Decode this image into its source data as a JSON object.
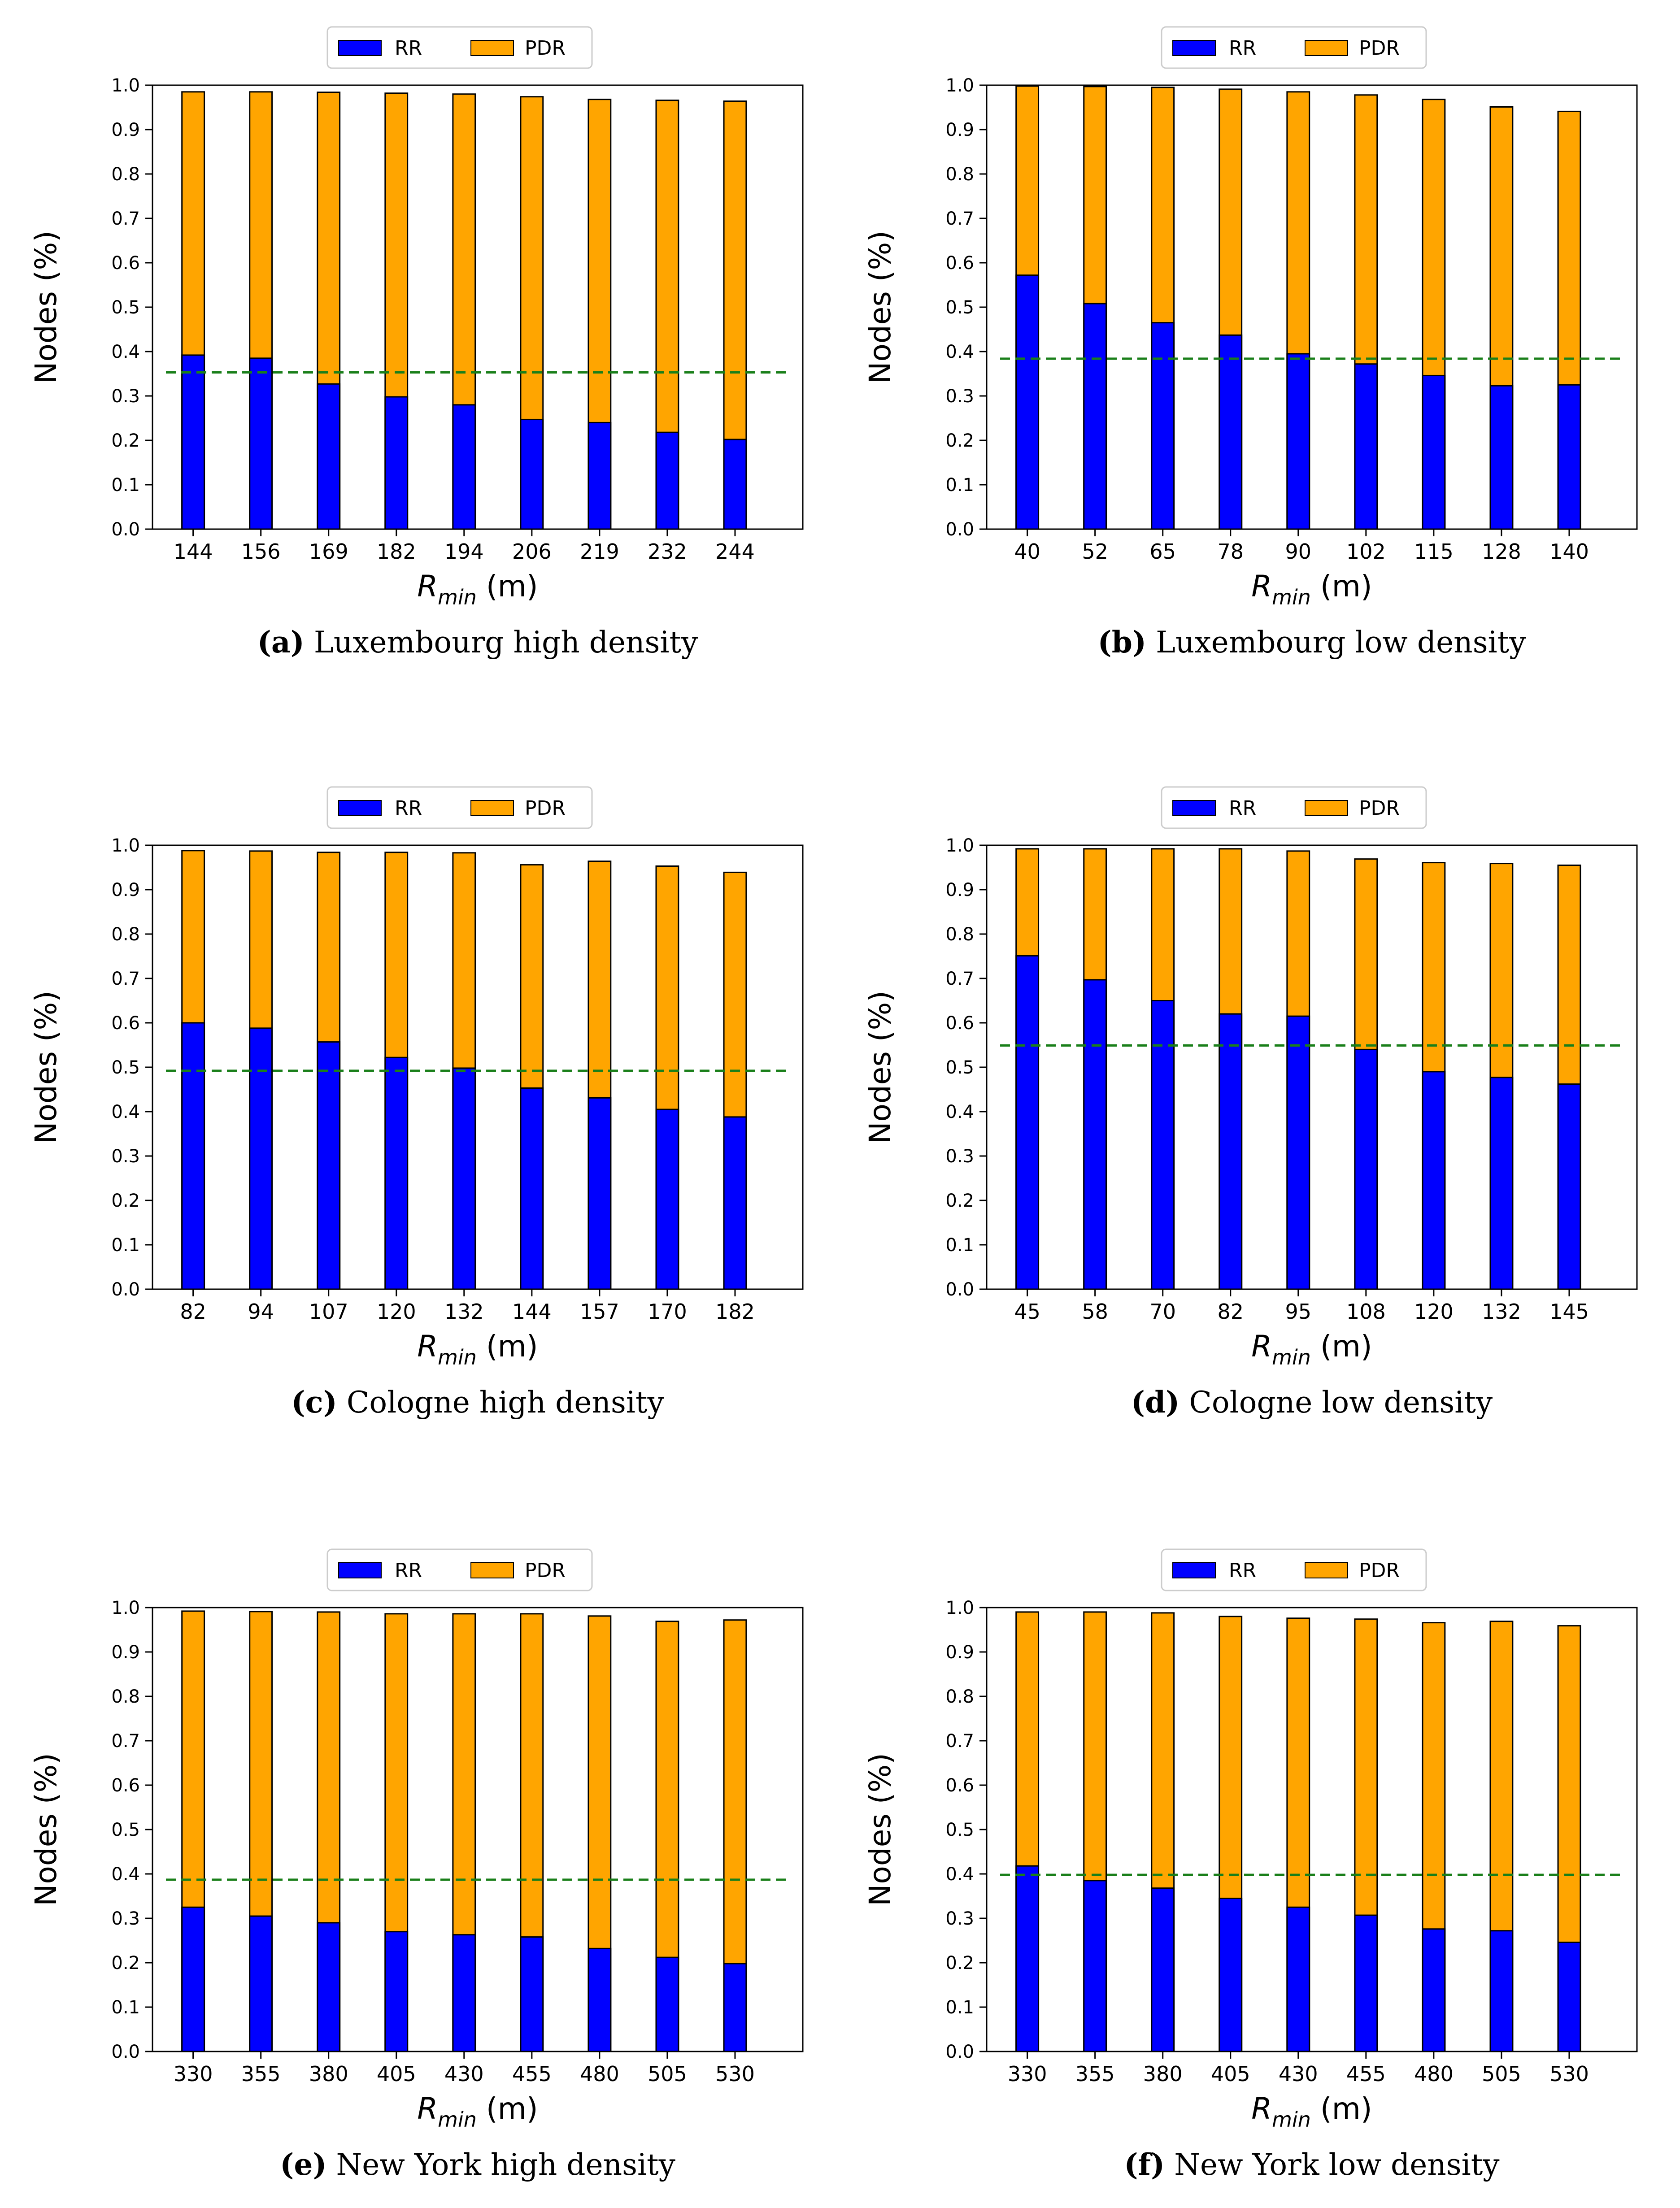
{
  "legend": {
    "rr_label": "RR",
    "pdr_label": "PDR"
  },
  "colors": {
    "rr": "#0000ff",
    "pdr": "#ffa500",
    "threshold": "#1a7f1a",
    "axis": "#000000"
  },
  "axis_text": {
    "ylabel": "Nodes (%)",
    "xlabel_symbol": "R",
    "xlabel_subscript": "min",
    "xlabel_unit": "(m)"
  },
  "chart_data": [
    {
      "type": "bar",
      "panel_letter": "(a)",
      "caption": "Luxembourg high density",
      "categories": [
        "144",
        "156",
        "169",
        "182",
        "194",
        "206",
        "219",
        "232",
        "244"
      ],
      "series": [
        {
          "name": "RR",
          "values": [
            0.392,
            0.385,
            0.327,
            0.298,
            0.28,
            0.247,
            0.24,
            0.218,
            0.202
          ]
        },
        {
          "name": "PDR",
          "values": [
            0.985,
            0.985,
            0.984,
            0.982,
            0.98,
            0.974,
            0.968,
            0.966,
            0.964
          ]
        }
      ],
      "threshold": 0.353,
      "ylim": [
        0,
        1.0
      ],
      "yticks": [
        "0.0",
        "0.1",
        "0.2",
        "0.3",
        "0.4",
        "0.5",
        "0.6",
        "0.7",
        "0.8",
        "0.9",
        "1.0"
      ]
    },
    {
      "type": "bar",
      "panel_letter": "(b)",
      "caption": "Luxembourg low density",
      "categories": [
        "40",
        "52",
        "65",
        "78",
        "90",
        "102",
        "115",
        "128",
        "140"
      ],
      "series": [
        {
          "name": "RR",
          "values": [
            0.572,
            0.508,
            0.465,
            0.437,
            0.395,
            0.372,
            0.346,
            0.323,
            0.325
          ]
        },
        {
          "name": "PDR",
          "values": [
            0.998,
            0.997,
            0.995,
            0.991,
            0.985,
            0.978,
            0.968,
            0.951,
            0.941
          ]
        }
      ],
      "threshold": 0.384,
      "ylim": [
        0,
        1.0
      ],
      "yticks": [
        "0.0",
        "0.1",
        "0.2",
        "0.3",
        "0.4",
        "0.5",
        "0.6",
        "0.7",
        "0.8",
        "0.9",
        "1.0"
      ]
    },
    {
      "type": "bar",
      "panel_letter": "(c)",
      "caption": "Cologne high density",
      "categories": [
        "82",
        "94",
        "107",
        "120",
        "132",
        "144",
        "157",
        "170",
        "182"
      ],
      "series": [
        {
          "name": "RR",
          "values": [
            0.6,
            0.588,
            0.557,
            0.522,
            0.498,
            0.453,
            0.431,
            0.405,
            0.388
          ]
        },
        {
          "name": "PDR",
          "values": [
            0.988,
            0.987,
            0.984,
            0.984,
            0.983,
            0.956,
            0.964,
            0.953,
            0.939
          ]
        }
      ],
      "threshold": 0.492,
      "ylim": [
        0,
        1.0
      ],
      "yticks": [
        "0.0",
        "0.1",
        "0.2",
        "0.3",
        "0.4",
        "0.5",
        "0.6",
        "0.7",
        "0.8",
        "0.9",
        "1.0"
      ]
    },
    {
      "type": "bar",
      "panel_letter": "(d)",
      "caption": "Cologne low density",
      "categories": [
        "45",
        "58",
        "70",
        "82",
        "95",
        "108",
        "120",
        "132",
        "145"
      ],
      "series": [
        {
          "name": "RR",
          "values": [
            0.751,
            0.697,
            0.65,
            0.62,
            0.615,
            0.54,
            0.49,
            0.477,
            0.462
          ]
        },
        {
          "name": "PDR",
          "values": [
            0.992,
            0.992,
            0.992,
            0.992,
            0.987,
            0.969,
            0.961,
            0.959,
            0.955
          ]
        }
      ],
      "threshold": 0.549,
      "ylim": [
        0,
        1.0
      ],
      "yticks": [
        "0.0",
        "0.1",
        "0.2",
        "0.3",
        "0.4",
        "0.5",
        "0.6",
        "0.7",
        "0.8",
        "0.9",
        "1.0"
      ]
    },
    {
      "type": "bar",
      "panel_letter": "(e)",
      "caption": "New York high density",
      "categories": [
        "330",
        "355",
        "380",
        "405",
        "430",
        "455",
        "480",
        "505",
        "530"
      ],
      "series": [
        {
          "name": "RR",
          "values": [
            0.325,
            0.305,
            0.29,
            0.27,
            0.263,
            0.258,
            0.232,
            0.212,
            0.198
          ]
        },
        {
          "name": "PDR",
          "values": [
            0.992,
            0.991,
            0.99,
            0.986,
            0.986,
            0.986,
            0.981,
            0.969,
            0.972
          ]
        }
      ],
      "threshold": 0.387,
      "ylim": [
        0,
        1.0
      ],
      "yticks": [
        "0.0",
        "0.1",
        "0.2",
        "0.3",
        "0.4",
        "0.5",
        "0.6",
        "0.7",
        "0.8",
        "0.9",
        "1.0"
      ]
    },
    {
      "type": "bar",
      "panel_letter": "(f)",
      "caption": "New York low density",
      "categories": [
        "330",
        "355",
        "380",
        "405",
        "430",
        "455",
        "480",
        "505",
        "530"
      ],
      "series": [
        {
          "name": "RR",
          "values": [
            0.418,
            0.385,
            0.368,
            0.345,
            0.325,
            0.307,
            0.276,
            0.272,
            0.246
          ]
        },
        {
          "name": "PDR",
          "values": [
            0.99,
            0.99,
            0.988,
            0.98,
            0.976,
            0.974,
            0.966,
            0.969,
            0.959
          ]
        }
      ],
      "threshold": 0.398,
      "ylim": [
        0,
        1.0
      ],
      "yticks": [
        "0.0",
        "0.1",
        "0.2",
        "0.3",
        "0.4",
        "0.5",
        "0.6",
        "0.7",
        "0.8",
        "0.9",
        "1.0"
      ]
    }
  ]
}
